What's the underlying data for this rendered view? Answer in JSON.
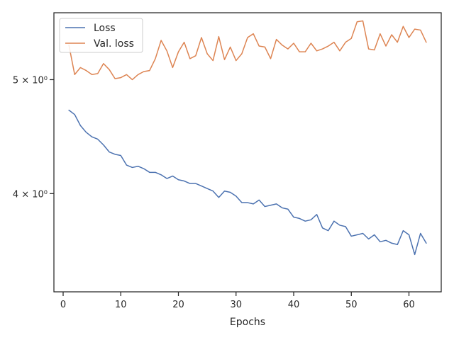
{
  "chart_data": {
    "type": "line",
    "xlabel": "Epochs",
    "ylabel": "",
    "yscale": "log",
    "xlim": [
      -1.6,
      65.6
    ],
    "ylim": [
      3.3,
      5.7
    ],
    "xticks": [
      0,
      10,
      20,
      30,
      40,
      50,
      60
    ],
    "yticks": [
      {
        "value": 4.0,
        "label": "4 × 10⁰"
      },
      {
        "value": 5.0,
        "label": "5 × 10⁰"
      }
    ],
    "grid": false,
    "legend": "top-left",
    "series": [
      {
        "name": "Loss",
        "color": "#4c72b0",
        "x": [
          1,
          2,
          3,
          4,
          5,
          6,
          7,
          8,
          9,
          10,
          11,
          12,
          13,
          14,
          15,
          16,
          17,
          18,
          19,
          20,
          21,
          22,
          23,
          24,
          25,
          26,
          27,
          28,
          29,
          30,
          31,
          32,
          33,
          34,
          35,
          36,
          37,
          38,
          39,
          40,
          41,
          42,
          43,
          44,
          45,
          46,
          47,
          48,
          49,
          50,
          51,
          52,
          53,
          54,
          55,
          56,
          57,
          58,
          59,
          60,
          61,
          62,
          63
        ],
        "values": [
          4.71,
          4.67,
          4.57,
          4.51,
          4.47,
          4.45,
          4.4,
          4.34,
          4.32,
          4.31,
          4.23,
          4.21,
          4.22,
          4.2,
          4.17,
          4.17,
          4.15,
          4.12,
          4.14,
          4.11,
          4.1,
          4.08,
          4.08,
          4.06,
          4.04,
          4.02,
          3.97,
          4.02,
          4.01,
          3.98,
          3.93,
          3.93,
          3.92,
          3.95,
          3.9,
          3.91,
          3.92,
          3.89,
          3.88,
          3.82,
          3.81,
          3.79,
          3.8,
          3.84,
          3.74,
          3.72,
          3.79,
          3.76,
          3.75,
          3.68,
          3.69,
          3.7,
          3.66,
          3.69,
          3.64,
          3.65,
          3.63,
          3.62,
          3.72,
          3.69,
          3.55,
          3.7,
          3.63
        ]
      },
      {
        "name": "Val. loss",
        "color": "#dd8452",
        "x": [
          1,
          2,
          3,
          4,
          5,
          6,
          7,
          8,
          9,
          10,
          11,
          12,
          13,
          14,
          15,
          16,
          17,
          18,
          19,
          20,
          21,
          22,
          23,
          24,
          25,
          26,
          27,
          28,
          29,
          30,
          31,
          32,
          33,
          34,
          35,
          36,
          37,
          38,
          39,
          40,
          41,
          42,
          43,
          44,
          45,
          46,
          47,
          48,
          49,
          50,
          51,
          52,
          53,
          54,
          55,
          56,
          57,
          58,
          59,
          60,
          61,
          62,
          63
        ],
        "values": [
          5.35,
          5.05,
          5.12,
          5.09,
          5.05,
          5.06,
          5.16,
          5.1,
          5.01,
          5.02,
          5.05,
          5.0,
          5.05,
          5.08,
          5.09,
          5.21,
          5.4,
          5.29,
          5.12,
          5.28,
          5.38,
          5.21,
          5.24,
          5.43,
          5.26,
          5.19,
          5.44,
          5.2,
          5.33,
          5.19,
          5.26,
          5.43,
          5.47,
          5.34,
          5.33,
          5.21,
          5.41,
          5.35,
          5.31,
          5.37,
          5.28,
          5.28,
          5.37,
          5.29,
          5.31,
          5.34,
          5.38,
          5.29,
          5.38,
          5.42,
          5.6,
          5.61,
          5.31,
          5.3,
          5.47,
          5.34,
          5.46,
          5.38,
          5.55,
          5.43,
          5.52,
          5.51,
          5.38
        ]
      }
    ]
  }
}
